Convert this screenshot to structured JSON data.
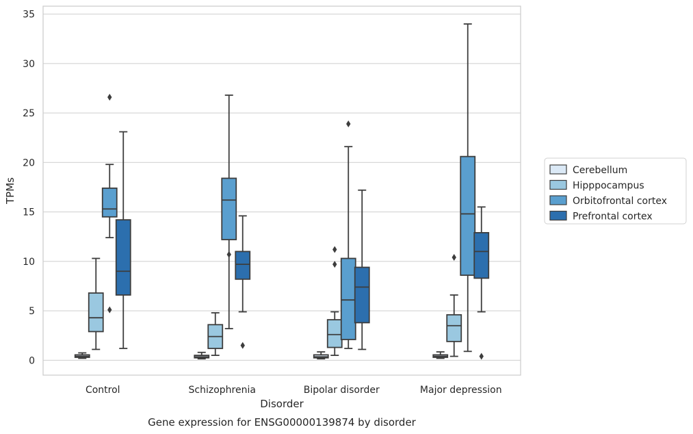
{
  "chart_data": {
    "type": "box",
    "title": "",
    "caption": "Gene expression for ENSG00000139874 by disorder",
    "xlabel": "Disorder",
    "ylabel": "TPMs",
    "ylim": [
      -1.5,
      35.8
    ],
    "yticks": [
      0,
      5,
      10,
      15,
      20,
      25,
      30,
      35
    ],
    "grid": true,
    "legend_position": "right",
    "categories": [
      "Control",
      "Schizophrenia",
      "Bipolar disorder",
      "Major depression"
    ],
    "series": [
      {
        "name": "Cerebellum",
        "color": "#dbe9f6",
        "boxes": [
          {
            "whislo": 0.2,
            "q1": 0.3,
            "med": 0.4,
            "q3": 0.55,
            "whishi": 0.75,
            "fliers": []
          },
          {
            "whislo": 0.15,
            "q1": 0.25,
            "med": 0.35,
            "q3": 0.5,
            "whishi": 0.8,
            "fliers": []
          },
          {
            "whislo": 0.15,
            "q1": 0.25,
            "med": 0.35,
            "q3": 0.55,
            "whishi": 0.85,
            "fliers": []
          },
          {
            "whislo": 0.2,
            "q1": 0.3,
            "med": 0.4,
            "q3": 0.55,
            "whishi": 0.85,
            "fliers": []
          }
        ]
      },
      {
        "name": "Hipppocampus",
        "color": "#9ac8e0",
        "boxes": [
          {
            "whislo": 1.1,
            "q1": 2.9,
            "med": 4.3,
            "q3": 6.8,
            "whishi": 10.3,
            "fliers": []
          },
          {
            "whislo": 0.5,
            "q1": 1.2,
            "med": 2.4,
            "q3": 3.6,
            "whishi": 4.8,
            "fliers": []
          },
          {
            "whislo": 0.5,
            "q1": 1.3,
            "med": 2.6,
            "q3": 4.1,
            "whishi": 4.9,
            "fliers": [
              9.7,
              11.2
            ]
          },
          {
            "whislo": 0.4,
            "q1": 1.9,
            "med": 3.5,
            "q3": 4.6,
            "whishi": 6.6,
            "fliers": [
              10.4
            ]
          }
        ]
      },
      {
        "name": "Orbitofrontal cortex",
        "color": "#5a9fcf",
        "boxes": [
          {
            "whislo": 12.4,
            "q1": 14.5,
            "med": 15.3,
            "q3": 17.4,
            "whishi": 19.8,
            "fliers": [
              5.1,
              26.6
            ]
          },
          {
            "whislo": 3.2,
            "q1": 12.2,
            "med": 16.2,
            "q3": 18.4,
            "whishi": 26.8,
            "fliers": [
              10.7
            ]
          },
          {
            "whislo": 1.2,
            "q1": 2.1,
            "med": 6.1,
            "q3": 10.3,
            "whishi": 21.6,
            "fliers": [
              23.9
            ]
          },
          {
            "whislo": 0.9,
            "q1": 8.6,
            "med": 14.8,
            "q3": 20.6,
            "whishi": 34.0,
            "fliers": []
          }
        ]
      },
      {
        "name": "Prefrontal cortex",
        "color": "#2c6fae",
        "boxes": [
          {
            "whislo": 1.2,
            "q1": 6.6,
            "med": 9.0,
            "q3": 14.2,
            "whishi": 23.1,
            "fliers": []
          },
          {
            "whislo": 4.9,
            "q1": 8.2,
            "med": 9.7,
            "q3": 11.0,
            "whishi": 14.6,
            "fliers": [
              1.5
            ]
          },
          {
            "whislo": 1.1,
            "q1": 3.8,
            "med": 7.4,
            "q3": 9.4,
            "whishi": 17.2,
            "fliers": []
          },
          {
            "whislo": 4.9,
            "q1": 8.3,
            "med": 11.0,
            "q3": 12.9,
            "whishi": 15.5,
            "fliers": [
              0.4
            ]
          }
        ]
      }
    ]
  }
}
